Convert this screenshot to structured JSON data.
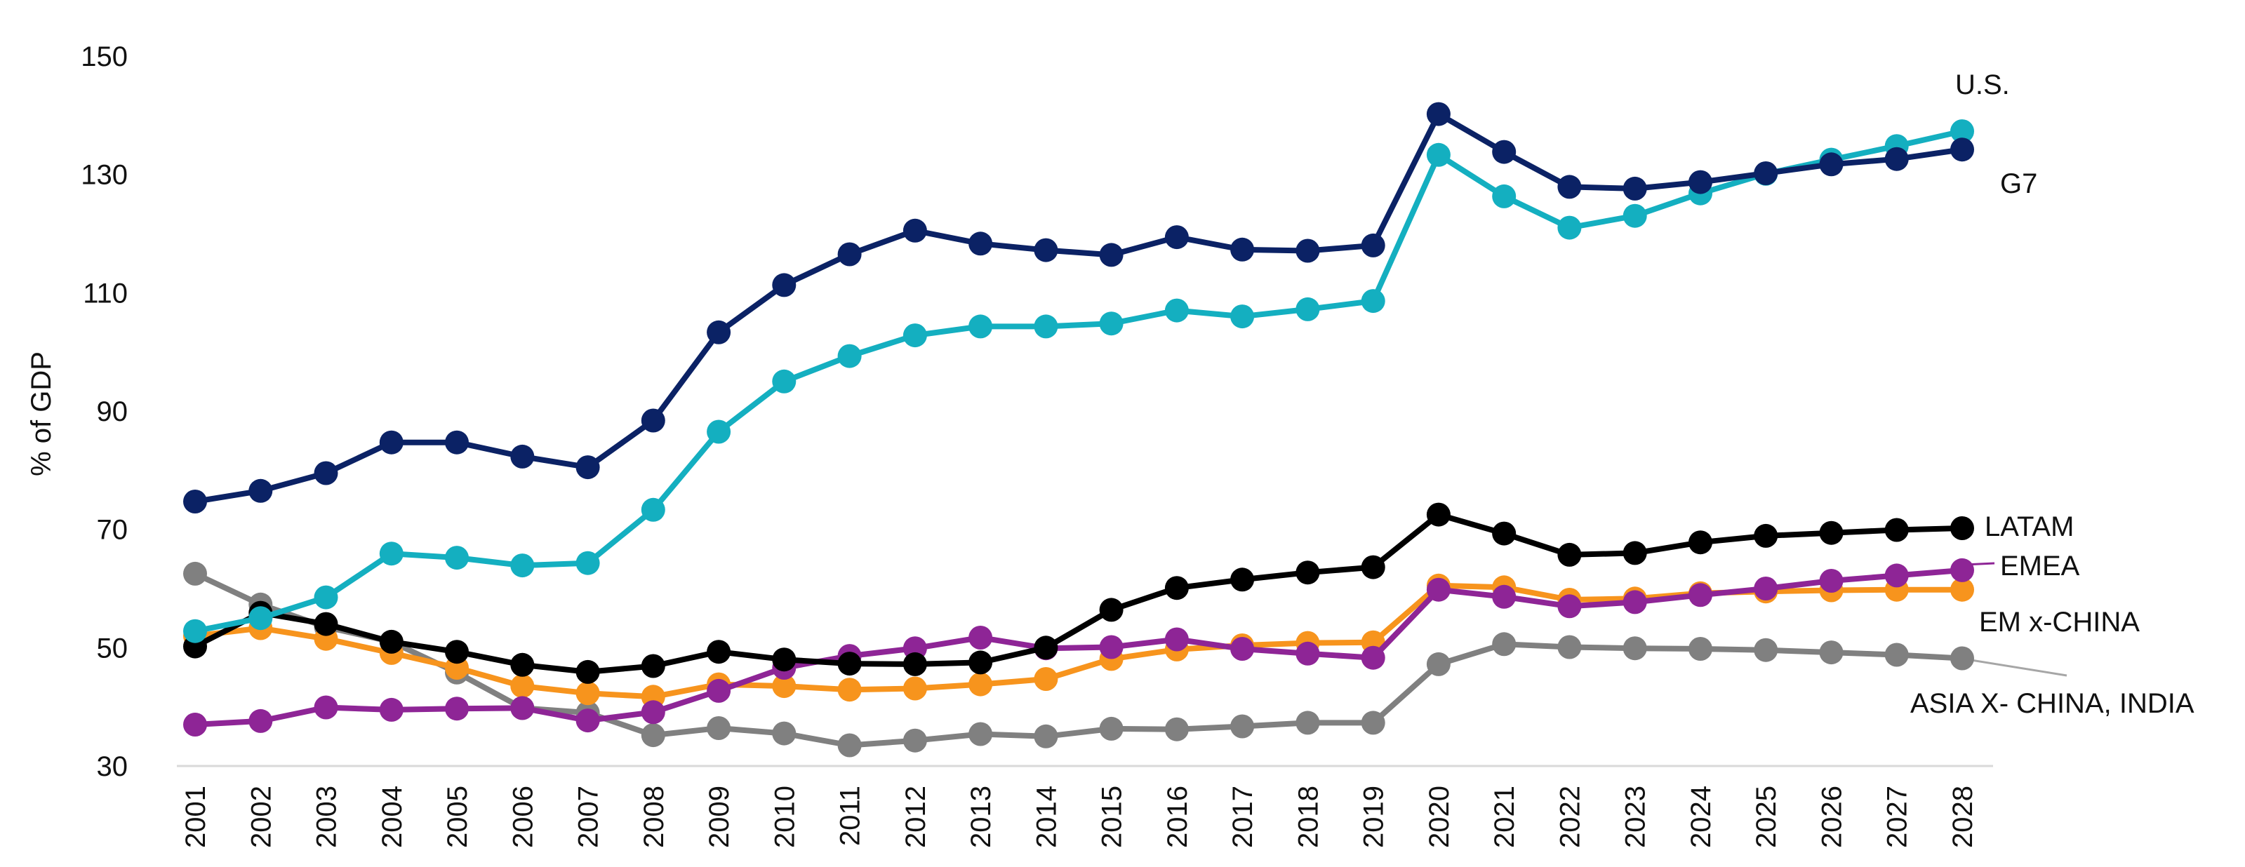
{
  "chart_data": {
    "type": "line",
    "title": "",
    "xlabel": "",
    "ylabel": "% of GDP",
    "ylim": [
      30,
      150
    ],
    "yticks": [
      30,
      50,
      70,
      90,
      110,
      130,
      150
    ],
    "categories": [
      "2001",
      "2002",
      "2003",
      "2004",
      "2005",
      "2006",
      "2007",
      "2008",
      "2009",
      "2010",
      "2011",
      "2012",
      "2013",
      "2014",
      "2015",
      "2016",
      "2017",
      "2018",
      "2019",
      "2020",
      "2021",
      "2022",
      "2023",
      "2024",
      "2025",
      "2026",
      "2027",
      "2028"
    ],
    "series": [
      {
        "name": "ASIA X- CHINA, INDIA",
        "color": "#808080",
        "values": [
          62.5,
          57.3,
          53.5,
          51.0,
          45.8,
          39.8,
          39.0,
          35.2,
          36.4,
          35.5,
          33.5,
          34.3,
          35.4,
          35.0,
          36.3,
          36.2,
          36.7,
          37.3,
          37.3,
          47.2,
          50.6,
          50.1,
          49.9,
          49.8,
          49.6,
          49.2,
          48.8,
          48.2
        ]
      },
      {
        "name": "EM x-CHINA",
        "color": "#f7941d",
        "values": [
          52.0,
          53.3,
          51.5,
          49.1,
          46.6,
          43.5,
          42.3,
          41.7,
          43.8,
          43.5,
          42.9,
          43.1,
          43.8,
          44.7,
          48.1,
          49.7,
          50.4,
          50.8,
          50.9,
          60.5,
          60.2,
          58.1,
          58.3,
          59.2,
          59.5,
          59.7,
          59.8,
          59.8
        ]
      },
      {
        "name": "EMEA",
        "color": "#8e2596",
        "values": [
          37.0,
          37.6,
          39.9,
          39.5,
          39.7,
          39.8,
          37.7,
          39.1,
          42.7,
          46.6,
          48.6,
          49.9,
          51.7,
          49.9,
          50.1,
          51.4,
          49.8,
          49.0,
          48.3,
          59.8,
          58.6,
          57.0,
          57.7,
          58.9,
          60.0,
          61.3,
          62.2,
          63.1
        ]
      },
      {
        "name": "LATAM",
        "color": "#000000",
        "values": [
          50.2,
          55.9,
          54.0,
          51.0,
          49.3,
          47.1,
          45.9,
          46.9,
          49.3,
          48.0,
          47.3,
          47.2,
          47.5,
          50.0,
          56.4,
          60.1,
          61.5,
          62.7,
          63.6,
          72.5,
          69.3,
          65.7,
          66.0,
          67.8,
          68.9,
          69.4,
          69.9,
          70.2
        ]
      },
      {
        "name": "U.S.",
        "color": "#14afc0",
        "values": [
          52.8,
          55.0,
          58.5,
          65.9,
          65.2,
          63.9,
          64.3,
          73.3,
          86.5,
          95.0,
          99.3,
          102.8,
          104.3,
          104.3,
          104.8,
          107.0,
          106.0,
          107.2,
          108.6,
          133.3,
          126.3,
          121.0,
          123.0,
          126.8,
          130.1,
          132.5,
          134.8,
          137.3
        ]
      },
      {
        "name": "G7",
        "color": "#0b2265",
        "values": [
          74.7,
          76.5,
          79.5,
          84.7,
          84.7,
          82.3,
          80.5,
          88.4,
          103.3,
          111.3,
          116.5,
          120.5,
          118.3,
          117.2,
          116.4,
          119.4,
          117.3,
          117.1,
          118.0,
          140.2,
          133.8,
          127.9,
          127.6,
          128.7,
          130.2,
          131.7,
          132.6,
          134.2
        ]
      }
    ],
    "labels": {
      "us": "U.S.",
      "g7": "G7",
      "latam": "LATAM",
      "emea": "EMEA",
      "em": "EM x-CHINA",
      "asia": "ASIA X- CHINA, INDIA"
    }
  }
}
